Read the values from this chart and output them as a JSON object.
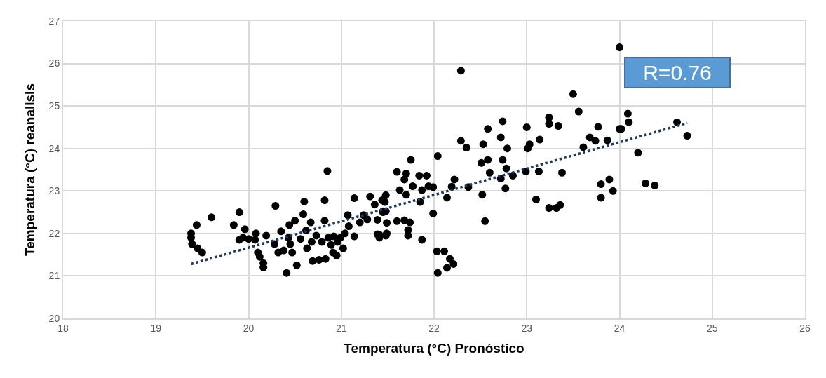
{
  "chart_data": {
    "type": "scatter",
    "xlabel": "Temperatura (°C) Pronóstico",
    "ylabel": "Temperatura (°C) reanalisis",
    "xlim": [
      18,
      26
    ],
    "xticks": [
      18,
      19,
      20,
      21,
      22,
      23,
      24,
      25,
      26
    ],
    "ylim": [
      20,
      27
    ],
    "yticks": [
      20,
      21,
      22,
      23,
      24,
      25,
      26,
      27
    ],
    "grid": true,
    "annotations": [
      "R=0.76"
    ],
    "series": [
      {
        "color": "#000000",
        "marker": "circle",
        "x": [
          19.38,
          19.38,
          19.39,
          19.44,
          19.45,
          19.5,
          19.6,
          19.84,
          19.9,
          19.9,
          19.94,
          19.96,
          20.0,
          20.07,
          20.08,
          20.1,
          20.12,
          20.16,
          20.16,
          20.19,
          20.29,
          20.28,
          20.32,
          20.35,
          20.38,
          20.41,
          20.43,
          20.44,
          20.45,
          20.47,
          20.5,
          20.52,
          20.56,
          20.59,
          20.6,
          20.62,
          20.63,
          20.67,
          20.68,
          20.69,
          20.73,
          20.76,
          20.79,
          20.82,
          20.82,
          20.83,
          20.85,
          20.86,
          20.89,
          20.91,
          20.92,
          20.95,
          20.96,
          20.99,
          21.02,
          21.04,
          21.07,
          21.08,
          21.14,
          21.14,
          21.2,
          21.24,
          21.28,
          21.31,
          21.36,
          21.39,
          21.41,
          21.44,
          21.45,
          21.48,
          21.49,
          21.49,
          21.47,
          21.45,
          21.48,
          21.6,
          21.7,
          21.75,
          21.68,
          21.63,
          21.7,
          21.84,
          21.92,
          21.77,
          21.87,
          21.94,
          21.99,
          22.04,
          21.85,
          21.99,
          21.6,
          21.68,
          21.74,
          21.72,
          21.72,
          21.87,
          21.39,
          21.41,
          21.48,
          22.29,
          22.29,
          22.35,
          22.22,
          22.19,
          22.14,
          22.37,
          22.58,
          22.53,
          22.51,
          22.58,
          22.6,
          22.52,
          22.55,
          22.74,
          22.72,
          22.79,
          22.74,
          22.78,
          22.72,
          22.85,
          22.77,
          23.0,
          23.03,
          23.01,
          22.99,
          23.14,
          23.13,
          23.1,
          23.24,
          23.24,
          23.34,
          23.38,
          23.24,
          23.32,
          23.36,
          23.5,
          23.56,
          23.61,
          23.68,
          23.74,
          23.77,
          23.87,
          23.8,
          23.89,
          23.93,
          23.8,
          24.0,
          22.03,
          22.11,
          22.17,
          22.21,
          22.14,
          22.04,
          24.0,
          24.09,
          24.1,
          24.02,
          24.2,
          24.28,
          24.38,
          24.62,
          24.73
        ],
        "values": [
          22.0,
          21.9,
          21.75,
          22.2,
          21.65,
          21.55,
          22.38,
          22.2,
          22.5,
          21.85,
          21.9,
          22.1,
          21.87,
          21.85,
          22.0,
          21.55,
          21.45,
          21.3,
          21.2,
          21.95,
          22.65,
          21.75,
          21.55,
          22.05,
          21.6,
          21.07,
          21.9,
          22.2,
          21.75,
          21.55,
          22.3,
          21.25,
          21.87,
          22.45,
          22.75,
          22.07,
          21.65,
          22.26,
          21.8,
          21.35,
          21.95,
          21.38,
          21.8,
          22.78,
          22.3,
          21.4,
          23.47,
          21.9,
          21.73,
          21.55,
          21.93,
          21.48,
          21.8,
          21.9,
          21.65,
          22.0,
          22.43,
          22.17,
          21.93,
          22.83,
          22.26,
          22.43,
          22.33,
          22.87,
          22.68,
          22.32,
          21.97,
          22.78,
          22.5,
          22.9,
          22.0,
          22.25,
          22.74,
          22.52,
          22.52,
          23.45,
          23.41,
          23.73,
          23.27,
          23.02,
          22.91,
          23.36,
          23.36,
          23.11,
          23.02,
          23.11,
          23.09,
          23.82,
          22.74,
          22.47,
          22.29,
          22.31,
          22.26,
          21.95,
          22.08,
          21.85,
          21.98,
          21.9,
          21.95,
          25.83,
          24.18,
          24.02,
          23.27,
          23.1,
          22.84,
          23.09,
          24.46,
          24.1,
          23.66,
          23.73,
          23.43,
          22.91,
          22.29,
          24.64,
          24.26,
          24.0,
          23.73,
          23.53,
          23.29,
          23.36,
          23.06,
          24.5,
          24.1,
          24.0,
          23.46,
          24.21,
          23.46,
          22.8,
          24.73,
          24.58,
          24.53,
          23.43,
          22.6,
          22.6,
          22.67,
          25.28,
          24.87,
          24.03,
          24.26,
          24.18,
          24.51,
          24.19,
          23.16,
          23.27,
          23.0,
          22.84,
          24.46,
          21.58,
          21.58,
          21.4,
          21.28,
          21.19,
          21.07,
          26.38,
          24.82,
          24.62,
          24.46,
          23.9,
          23.18,
          23.13,
          24.62,
          24.3
        ]
      },
      {
        "type": "line",
        "color": "#1f3864",
        "line_style": "dotted",
        "marker": "none",
        "x": [
          19.38,
          24.73
        ],
        "values": [
          21.28,
          24.6
        ]
      }
    ]
  }
}
